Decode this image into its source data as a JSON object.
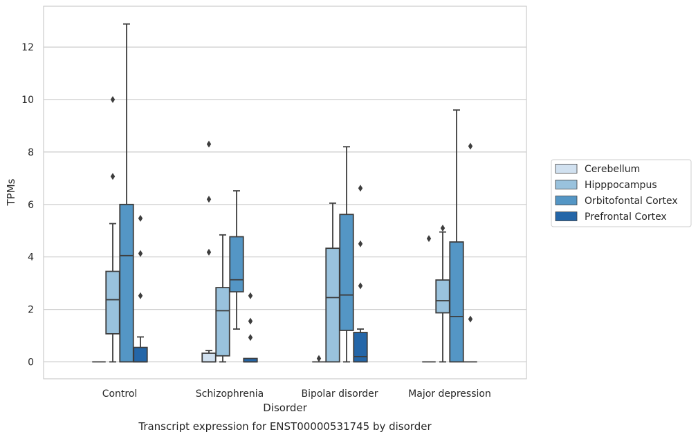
{
  "chart_data": {
    "type": "box",
    "title": "",
    "caption": "Transcript expression for ENST00000531745 by disorder",
    "xlabel": "Disorder",
    "ylabel": "TPMs",
    "ylim": [
      -0.65,
      13.5
    ],
    "yticks": [
      0,
      2,
      4,
      6,
      8,
      10,
      12
    ],
    "grid": "horizontal",
    "legend_position": "right",
    "categories": [
      "Control",
      "Schizophrenia",
      "Bipolar disorder",
      "Major depression"
    ],
    "series": [
      {
        "name": "Cerebellum",
        "color": "#d1e1f0",
        "boxes": [
          {
            "q1": 0,
            "median": 0,
            "q3": 0,
            "whisker_low": 0,
            "whisker_high": 0,
            "outliers": []
          },
          {
            "q1": 0,
            "median": 0,
            "q3": 0.33,
            "whisker_low": 0,
            "whisker_high": 0.43,
            "outliers": [
              4.18,
              6.2,
              8.3
            ]
          },
          {
            "q1": 0,
            "median": 0,
            "q3": 0,
            "whisker_low": 0,
            "whisker_high": 0,
            "outliers": [
              0.13
            ]
          },
          {
            "q1": 0,
            "median": 0,
            "q3": 0,
            "whisker_low": 0,
            "whisker_high": 0,
            "outliers": [
              4.7
            ]
          }
        ]
      },
      {
        "name": "Hipppocampus",
        "color": "#99c2dd",
        "boxes": [
          {
            "q1": 1.07,
            "median": 2.37,
            "q3": 3.45,
            "whisker_low": 0,
            "whisker_high": 5.27,
            "outliers": [
              7.07,
              10.0
            ]
          },
          {
            "q1": 0.23,
            "median": 1.95,
            "q3": 2.83,
            "whisker_low": 0,
            "whisker_high": 4.84,
            "outliers": []
          },
          {
            "q1": 0,
            "median": 2.45,
            "q3": 4.33,
            "whisker_low": 0,
            "whisker_high": 6.05,
            "outliers": []
          },
          {
            "q1": 1.87,
            "median": 2.33,
            "q3": 3.12,
            "whisker_low": 0,
            "whisker_high": 4.95,
            "outliers": [
              5.1
            ]
          }
        ]
      },
      {
        "name": "Orbitofontal Cortex",
        "color": "#5496c5",
        "boxes": [
          {
            "q1": 0,
            "median": 4.05,
            "q3": 6.0,
            "whisker_low": 0,
            "whisker_high": 12.88,
            "outliers": []
          },
          {
            "q1": 2.67,
            "median": 3.13,
            "q3": 4.77,
            "whisker_low": 1.25,
            "whisker_high": 6.52,
            "outliers": []
          },
          {
            "q1": 1.2,
            "median": 2.55,
            "q3": 5.62,
            "whisker_low": 0,
            "whisker_high": 8.2,
            "outliers": []
          },
          {
            "q1": 0,
            "median": 1.73,
            "q3": 4.57,
            "whisker_low": 0,
            "whisker_high": 9.6,
            "outliers": []
          }
        ]
      },
      {
        "name": "Prefrontal Cortex",
        "color": "#2466a8",
        "boxes": [
          {
            "q1": 0,
            "median": 0,
            "q3": 0.55,
            "whisker_low": 0,
            "whisker_high": 0.95,
            "outliers": [
              2.52,
              4.13,
              5.47
            ]
          },
          {
            "q1": 0,
            "median": 0,
            "q3": 0.13,
            "whisker_low": 0,
            "whisker_high": 0.13,
            "outliers": [
              0.93,
              1.55,
              2.52
            ]
          },
          {
            "q1": 0,
            "median": 0.2,
            "q3": 1.12,
            "whisker_low": 0,
            "whisker_high": 1.25,
            "outliers": [
              2.9,
              4.5,
              6.62
            ]
          },
          {
            "q1": 0,
            "median": 0,
            "q3": 0,
            "whisker_low": 0,
            "whisker_high": 0,
            "outliers": [
              1.63,
              8.22
            ]
          }
        ]
      }
    ]
  }
}
